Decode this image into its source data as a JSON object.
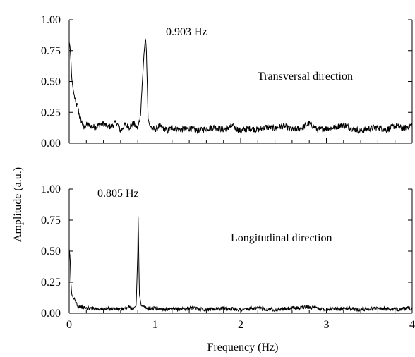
{
  "chart_data": [
    {
      "type": "line",
      "xlim": [
        0,
        4
      ],
      "ylim": [
        0,
        1
      ],
      "x_ticks": [
        0,
        1,
        2,
        3,
        4
      ],
      "y_ticks": [
        "0.00",
        "0.25",
        "0.50",
        "0.75",
        "1.00"
      ],
      "grid": false,
      "annotations": [
        "0.903 Hz",
        "Transversal direction"
      ],
      "peak": {
        "x": 0.903,
        "y": 0.86
      },
      "series": [
        {
          "x": [
            0.0,
            0.01,
            0.02,
            0.03,
            0.05,
            0.08,
            0.1,
            0.12,
            0.14,
            0.15,
            0.17,
            0.2,
            0.25,
            0.3,
            0.35,
            0.4,
            0.45,
            0.5,
            0.55,
            0.6,
            0.65,
            0.7,
            0.75,
            0.8,
            0.83,
            0.85,
            0.87,
            0.89,
            0.9,
            0.91,
            0.92,
            0.94,
            0.97,
            1.0,
            1.05,
            1.1,
            1.15,
            1.2,
            1.3,
            1.4,
            1.5,
            1.6,
            1.7,
            1.8,
            1.9,
            2.0,
            2.1,
            2.2,
            2.3,
            2.4,
            2.5,
            2.6,
            2.7,
            2.8,
            2.9,
            3.0,
            3.1,
            3.2,
            3.3,
            3.4,
            3.5,
            3.6,
            3.7,
            3.8,
            3.9,
            4.0
          ],
          "y": [
            0.82,
            0.78,
            0.68,
            0.52,
            0.42,
            0.31,
            0.3,
            0.22,
            0.18,
            0.17,
            0.12,
            0.15,
            0.14,
            0.13,
            0.15,
            0.16,
            0.13,
            0.14,
            0.17,
            0.1,
            0.15,
            0.13,
            0.16,
            0.12,
            0.22,
            0.45,
            0.7,
            0.86,
            0.75,
            0.5,
            0.2,
            0.14,
            0.12,
            0.11,
            0.14,
            0.12,
            0.1,
            0.13,
            0.11,
            0.12,
            0.1,
            0.12,
            0.13,
            0.11,
            0.14,
            0.1,
            0.12,
            0.11,
            0.13,
            0.12,
            0.14,
            0.11,
            0.12,
            0.16,
            0.11,
            0.12,
            0.13,
            0.15,
            0.12,
            0.1,
            0.12,
            0.13,
            0.11,
            0.14,
            0.12,
            0.15
          ]
        }
      ]
    },
    {
      "type": "line",
      "xlim": [
        0,
        4
      ],
      "ylim": [
        0,
        1
      ],
      "x_ticks": [
        0,
        1,
        2,
        3,
        4
      ],
      "y_ticks": [
        "0.00",
        "0.25",
        "0.50",
        "0.75",
        "1.00"
      ],
      "grid": false,
      "annotations": [
        "0.805 Hz",
        "Longitudinal direction"
      ],
      "peak": {
        "x": 0.805,
        "y": 0.85
      },
      "series": [
        {
          "x": [
            0.0,
            0.01,
            0.02,
            0.03,
            0.05,
            0.08,
            0.1,
            0.15,
            0.2,
            0.3,
            0.4,
            0.5,
            0.6,
            0.7,
            0.75,
            0.78,
            0.79,
            0.8,
            0.805,
            0.81,
            0.82,
            0.84,
            0.9,
            1.0,
            1.2,
            1.4,
            1.6,
            1.8,
            2.0,
            2.2,
            2.4,
            2.6,
            2.8,
            3.0,
            3.2,
            3.4,
            3.6,
            3.8,
            4.0
          ],
          "y": [
            0.52,
            0.45,
            0.25,
            0.15,
            0.12,
            0.09,
            0.06,
            0.05,
            0.04,
            0.04,
            0.03,
            0.04,
            0.03,
            0.05,
            0.04,
            0.06,
            0.25,
            0.5,
            0.85,
            0.5,
            0.15,
            0.06,
            0.04,
            0.04,
            0.03,
            0.04,
            0.03,
            0.04,
            0.03,
            0.04,
            0.03,
            0.04,
            0.05,
            0.03,
            0.04,
            0.03,
            0.04,
            0.03,
            0.04
          ]
        }
      ]
    }
  ],
  "figure": {
    "ylabel": "Amplitude (a.u.)",
    "xlabel": "Frequency (Hz)"
  }
}
